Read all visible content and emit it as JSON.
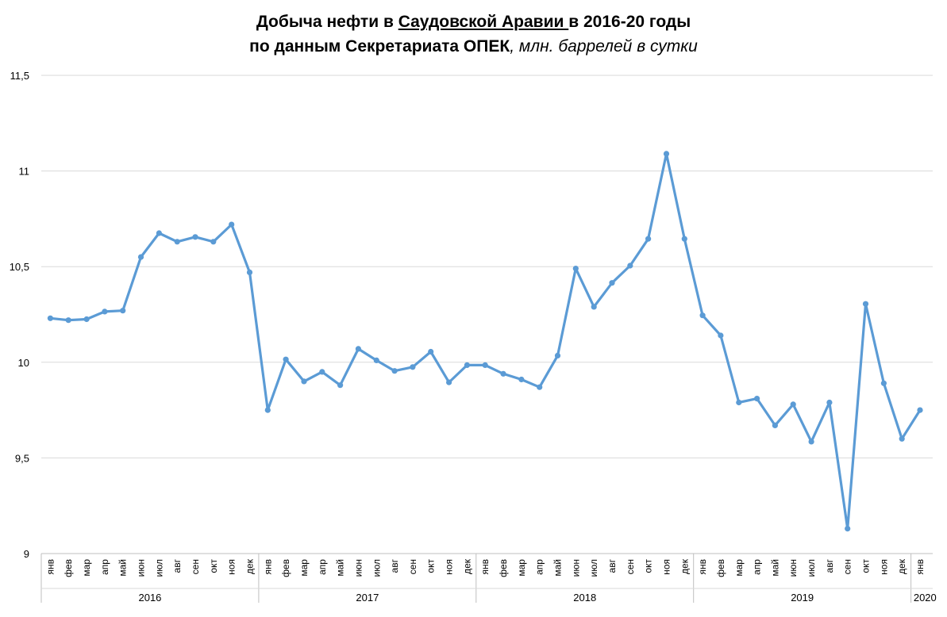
{
  "title": {
    "line1_pre": "Добыча нефти в ",
    "line1_country": "Саудовской Аравии ",
    "line1_post": "в 2016-20 годы",
    "line2_main": "по данным Секретариата ОПЕК",
    "line2_units": ", млн. баррелей в сутки"
  },
  "chart_data": {
    "type": "line",
    "title": "Добыча нефти в Саудовской Аравии в 2016-20 годы по данным Секретариата ОПЕК, млн. баррелей в сутки",
    "xlabel": "",
    "ylabel": "",
    "ylim": [
      9,
      11.5
    ],
    "yticks": [
      9,
      9.5,
      10,
      10.5,
      11,
      11.5
    ],
    "ytick_labels": [
      "9",
      "9,5",
      "10",
      "10,5",
      "11",
      "11,5"
    ],
    "grid": true,
    "color": "#5B9BD5",
    "groups": [
      {
        "label": "2016",
        "months": [
          "янв",
          "фев",
          "мар",
          "апр",
          "май",
          "июн",
          "июл",
          "авг",
          "сен",
          "окт",
          "ноя",
          "дек"
        ]
      },
      {
        "label": "2017",
        "months": [
          "янв",
          "фев",
          "мар",
          "апр",
          "май",
          "июн",
          "июл",
          "авг",
          "сен",
          "окт",
          "ноя",
          "дек"
        ]
      },
      {
        "label": "2018",
        "months": [
          "янв",
          "фев",
          "мар",
          "апр",
          "май",
          "июн",
          "июл",
          "авг",
          "сен",
          "окт",
          "ноя",
          "дек"
        ]
      },
      {
        "label": "2019",
        "months": [
          "янв",
          "фев",
          "мар",
          "апр",
          "май",
          "июн",
          "июл",
          "авг",
          "сен",
          "окт",
          "ноя",
          "дек"
        ]
      },
      {
        "label": "2020",
        "months": [
          "янв"
        ]
      }
    ],
    "series": [
      {
        "name": "Добыча нефти",
        "values": [
          10.23,
          10.22,
          10.225,
          10.265,
          10.27,
          10.55,
          10.675,
          10.63,
          10.655,
          10.63,
          10.72,
          10.47,
          9.75,
          10.015,
          9.9,
          9.95,
          9.88,
          10.07,
          10.01,
          9.955,
          9.975,
          10.055,
          9.895,
          9.985,
          9.985,
          9.94,
          9.91,
          9.87,
          10.035,
          10.49,
          10.29,
          10.415,
          10.505,
          10.645,
          11.09,
          10.645,
          10.245,
          10.14,
          9.79,
          9.81,
          9.67,
          9.78,
          9.585,
          9.79,
          9.13,
          10.305,
          9.89,
          9.6,
          9.75
        ]
      }
    ]
  }
}
